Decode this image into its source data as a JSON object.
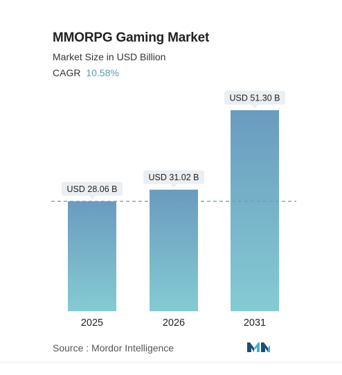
{
  "header": {
    "title": "MMORPG Gaming Market",
    "subtitle": "Market Size in USD Billion",
    "cagr_label": "CAGR",
    "cagr_value": "10.58%"
  },
  "footer": {
    "source_text": "Source :  Mordor Intelligence"
  },
  "colors": {
    "bar_top": "#6a9bbf",
    "bar_bottom": "#85cbd3",
    "dashed_line": "#6a9bbf",
    "label_box": "#eceff1",
    "cagr_value": "#5b9bb0",
    "logo_dark": "#1c4f78",
    "logo_teal": "#3fb6c5"
  },
  "chart_data": {
    "type": "bar",
    "categories": [
      "2025",
      "2026",
      "2031"
    ],
    "values": [
      28.06,
      31.02,
      51.3
    ],
    "data_labels": [
      "USD 28.06 B",
      "USD 31.02 B",
      "USD 51.30 B"
    ],
    "ylim": [
      0,
      51.3
    ],
    "grid": false,
    "reference_line": {
      "value": 28.06,
      "style": "dashed"
    }
  }
}
